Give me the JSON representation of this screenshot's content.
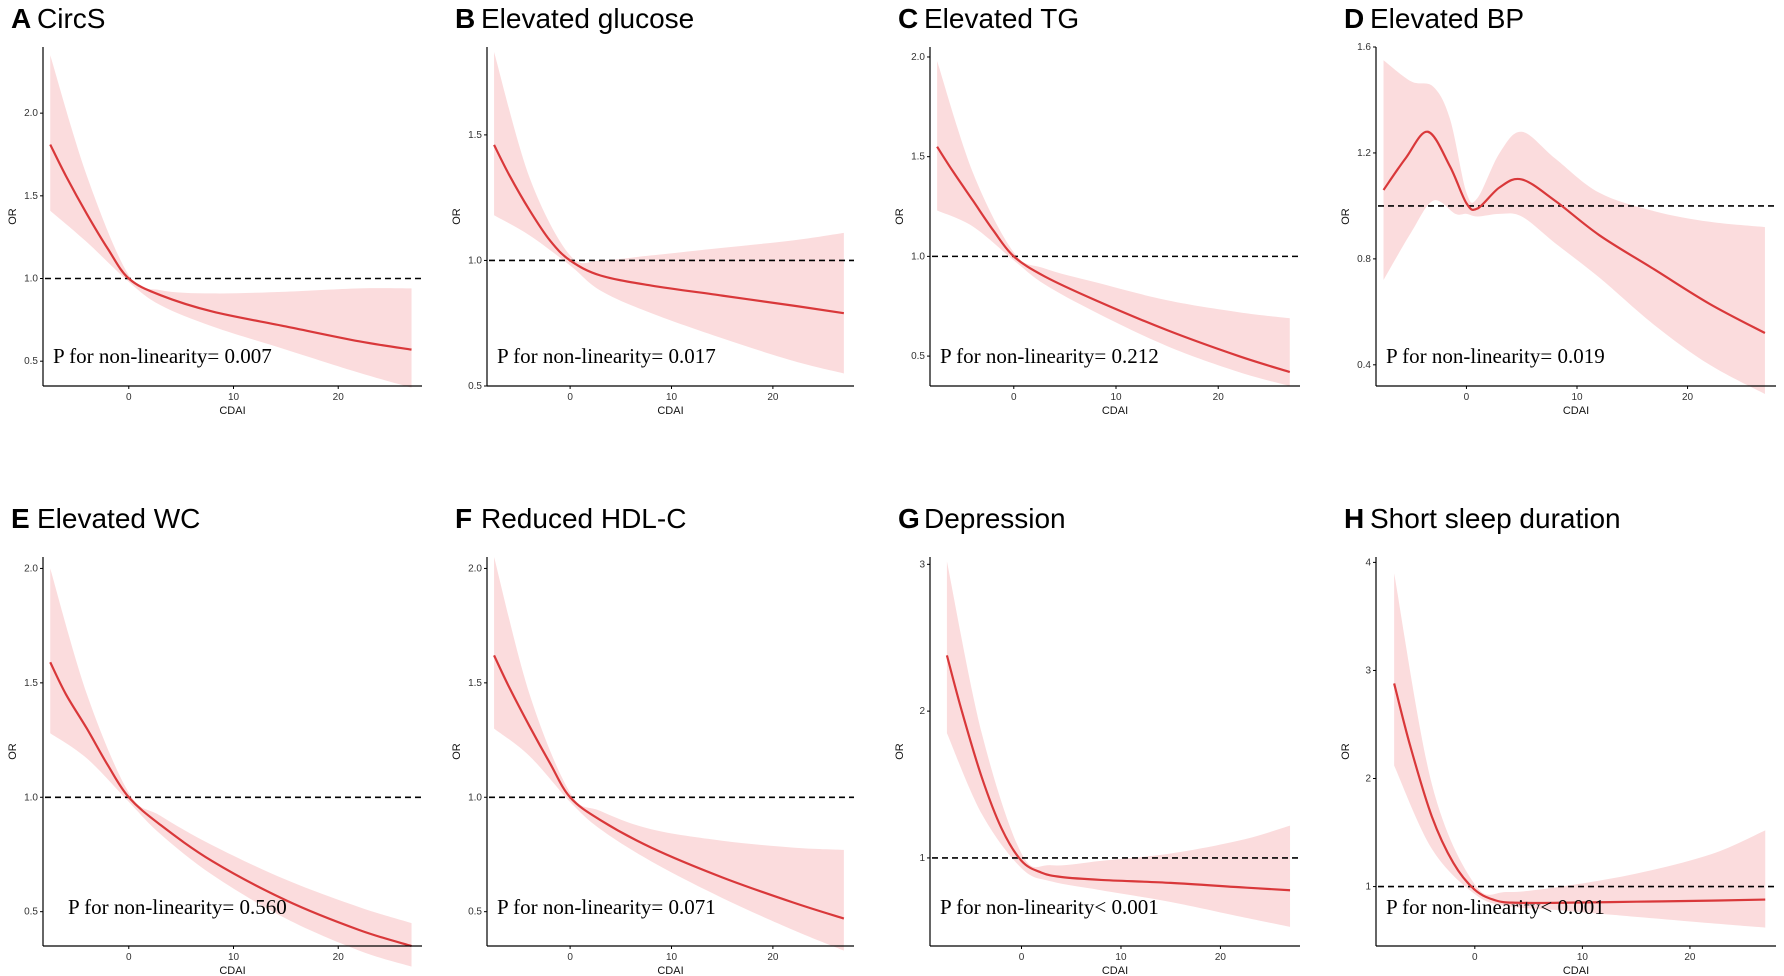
{
  "figure": {
    "palette": {
      "curve": "#d9383a",
      "band": "#fbdcdd",
      "reference": "#000000"
    }
  },
  "chart_data": [
    {
      "type": "line",
      "letter": "A",
      "title": "CircS",
      "xlabel": "CDAI",
      "ylabel": "OR",
      "xlim": [
        -8,
        28
      ],
      "ylim": [
        0.35,
        2.4
      ],
      "xticks": [
        0,
        10,
        20
      ],
      "yticks": [
        0.5,
        1.0,
        1.5,
        2.0
      ],
      "ytick_labels": [
        "0.5",
        "1.0",
        "1.5",
        "2.0"
      ],
      "reference_y": 1.0,
      "annotation": "P for non-linearity= 0.007",
      "series": [
        {
          "name": "OR",
          "x": [
            -7.5,
            -6,
            -4,
            -2,
            0,
            3,
            8,
            15,
            22,
            27
          ],
          "y": [
            1.81,
            1.62,
            1.39,
            1.18,
            1.0,
            0.9,
            0.8,
            0.71,
            0.62,
            0.57
          ]
        },
        {
          "name": "95% CI lower",
          "x": [
            -7.5,
            -4,
            0,
            3,
            8,
            15,
            22,
            27
          ],
          "y": [
            1.41,
            1.22,
            0.98,
            0.84,
            0.71,
            0.57,
            0.43,
            0.34
          ]
        },
        {
          "name": "95% CI upper",
          "x": [
            -7.5,
            -4,
            0,
            3,
            8,
            15,
            22,
            27
          ],
          "y": [
            2.35,
            1.62,
            1.02,
            0.93,
            0.91,
            0.92,
            0.94,
            0.94
          ]
        }
      ]
    },
    {
      "type": "line",
      "letter": "B",
      "title": "Elevated glucose",
      "xlabel": "CDAI",
      "ylabel": "OR",
      "xlim": [
        -8,
        28
      ],
      "ylim": [
        0.5,
        1.85
      ],
      "xticks": [
        0,
        10,
        20
      ],
      "yticks": [
        0.5,
        1.0,
        1.5
      ],
      "ytick_labels": [
        "0.5",
        "1.0",
        "1.5"
      ],
      "reference_y": 1.0,
      "annotation": "P for non-linearity= 0.017",
      "series": [
        {
          "name": "OR",
          "x": [
            -7.5,
            -6,
            -4,
            -2,
            0,
            3,
            8,
            15,
            22,
            27
          ],
          "y": [
            1.46,
            1.34,
            1.2,
            1.08,
            1.0,
            0.94,
            0.9,
            0.86,
            0.82,
            0.79
          ]
        },
        {
          "name": "95% CI lower",
          "x": [
            -7.5,
            -4,
            0,
            3,
            8,
            15,
            22,
            27
          ],
          "y": [
            1.18,
            1.1,
            0.98,
            0.88,
            0.79,
            0.69,
            0.6,
            0.55
          ]
        },
        {
          "name": "95% CI upper",
          "x": [
            -7.5,
            -4,
            0,
            3,
            8,
            15,
            22,
            27
          ],
          "y": [
            1.83,
            1.33,
            1.02,
            1.0,
            1.02,
            1.05,
            1.08,
            1.11
          ]
        }
      ]
    },
    {
      "type": "line",
      "letter": "C",
      "title": "Elevated TG",
      "xlabel": "CDAI",
      "ylabel": "OR",
      "xlim": [
        -8,
        28
      ],
      "ylim": [
        0.35,
        2.05
      ],
      "xticks": [
        0,
        10,
        20
      ],
      "yticks": [
        0.5,
        1.0,
        1.5,
        2.0
      ],
      "ytick_labels": [
        "0.5",
        "1.0",
        "1.5",
        "2.0"
      ],
      "reference_y": 1.0,
      "annotation": "P for non-linearity= 0.212",
      "series": [
        {
          "name": "OR",
          "x": [
            -7.5,
            -6,
            -4,
            -2,
            0,
            3,
            8,
            15,
            22,
            27
          ],
          "y": [
            1.55,
            1.43,
            1.28,
            1.13,
            1.0,
            0.9,
            0.78,
            0.63,
            0.5,
            0.42
          ]
        },
        {
          "name": "95% CI lower",
          "x": [
            -7.5,
            -4,
            0,
            3,
            8,
            15,
            22,
            27
          ],
          "y": [
            1.23,
            1.15,
            0.98,
            0.86,
            0.72,
            0.55,
            0.42,
            0.35
          ]
        },
        {
          "name": "95% CI upper",
          "x": [
            -7.5,
            -4,
            0,
            3,
            8,
            15,
            22,
            27
          ],
          "y": [
            1.98,
            1.42,
            1.02,
            0.94,
            0.87,
            0.78,
            0.72,
            0.69
          ]
        }
      ]
    },
    {
      "type": "line",
      "letter": "D",
      "title": "Elevated BP",
      "xlabel": "CDAI",
      "ylabel": "OR",
      "xlim": [
        -8,
        28
      ],
      "ylim": [
        0.32,
        1.6
      ],
      "xticks": [
        0,
        10,
        20
      ],
      "yticks": [
        0.4,
        0.8,
        1.2,
        1.6
      ],
      "ytick_labels": [
        "0.4",
        "0.8",
        "1.2",
        "1.6"
      ],
      "reference_y": 1.0,
      "annotation": "P for non-linearity= 0.019",
      "series": [
        {
          "name": "OR",
          "x": [
            -7.5,
            -5.5,
            -3.5,
            -1.5,
            0,
            1,
            3,
            5,
            8,
            12,
            17,
            22,
            27
          ],
          "y": [
            1.06,
            1.18,
            1.28,
            1.15,
            1.01,
            0.99,
            1.07,
            1.1,
            1.02,
            0.89,
            0.76,
            0.63,
            0.52
          ]
        },
        {
          "name": "95% CI lower",
          "x": [
            -7.5,
            -5,
            -3,
            -1,
            0,
            1,
            3,
            5,
            8,
            12,
            17,
            22,
            27
          ],
          "y": [
            0.72,
            0.9,
            1.02,
            0.97,
            0.97,
            0.96,
            0.97,
            0.96,
            0.86,
            0.73,
            0.55,
            0.4,
            0.29
          ]
        },
        {
          "name": "95% CI upper",
          "x": [
            -7.5,
            -5,
            -3,
            -1.5,
            0,
            1,
            3,
            5,
            8,
            12,
            17,
            22,
            27
          ],
          "y": [
            1.55,
            1.47,
            1.45,
            1.33,
            1.05,
            1.03,
            1.2,
            1.28,
            1.18,
            1.05,
            0.98,
            0.94,
            0.92
          ]
        }
      ]
    },
    {
      "type": "line",
      "letter": "E",
      "title": "Elevated WC",
      "xlabel": "CDAI",
      "ylabel": "OR",
      "xlim": [
        -8,
        28
      ],
      "ylim": [
        0.35,
        2.05
      ],
      "xticks": [
        0,
        10,
        20
      ],
      "yticks": [
        0.5,
        1.0,
        1.5,
        2.0
      ],
      "ytick_labels": [
        "0.5",
        "1.0",
        "1.5",
        "2.0"
      ],
      "reference_y": 1.0,
      "annotation": "P for non-linearity= 0.560",
      "series": [
        {
          "name": "OR",
          "x": [
            -7.5,
            -6,
            -4,
            -2,
            0,
            3,
            8,
            15,
            22,
            27
          ],
          "y": [
            1.59,
            1.45,
            1.3,
            1.14,
            1.0,
            0.88,
            0.72,
            0.55,
            0.42,
            0.35
          ]
        },
        {
          "name": "95% CI lower",
          "x": [
            -7.5,
            -4,
            0,
            3,
            8,
            15,
            22,
            27
          ],
          "y": [
            1.28,
            1.17,
            0.98,
            0.84,
            0.66,
            0.47,
            0.33,
            0.26
          ]
        },
        {
          "name": "95% CI upper",
          "x": [
            -7.5,
            -4,
            0,
            3,
            8,
            15,
            22,
            27
          ],
          "y": [
            2.0,
            1.45,
            1.02,
            0.92,
            0.79,
            0.64,
            0.52,
            0.45
          ]
        }
      ]
    },
    {
      "type": "line",
      "letter": "F",
      "title": "Reduced HDL-C",
      "xlabel": "CDAI",
      "ylabel": "OR",
      "xlim": [
        -8,
        28
      ],
      "ylim": [
        0.35,
        2.05
      ],
      "xticks": [
        0,
        10,
        20
      ],
      "yticks": [
        0.5,
        1.0,
        1.5,
        2.0
      ],
      "ytick_labels": [
        "0.5",
        "1.0",
        "1.5",
        "2.0"
      ],
      "reference_y": 1.0,
      "annotation": "P for non-linearity= 0.071",
      "series": [
        {
          "name": "OR",
          "x": [
            -7.5,
            -6,
            -4,
            -2,
            0,
            3,
            8,
            15,
            22,
            27
          ],
          "y": [
            1.62,
            1.48,
            1.31,
            1.15,
            1.0,
            0.9,
            0.78,
            0.65,
            0.54,
            0.47
          ]
        },
        {
          "name": "95% CI lower",
          "x": [
            -7.5,
            -4,
            0,
            3,
            8,
            15,
            22,
            27
          ],
          "y": [
            1.3,
            1.18,
            0.98,
            0.86,
            0.72,
            0.56,
            0.42,
            0.33
          ]
        },
        {
          "name": "95% CI upper",
          "x": [
            -7.5,
            -4,
            0,
            3,
            8,
            15,
            22,
            27
          ],
          "y": [
            2.05,
            1.45,
            1.02,
            0.94,
            0.86,
            0.81,
            0.78,
            0.77
          ]
        }
      ]
    },
    {
      "type": "line",
      "letter": "G",
      "title": "Depression",
      "xlabel": "CDAI",
      "ylabel": "OR",
      "xlim": [
        -9,
        28
      ],
      "ylim": [
        0.4,
        3.05
      ],
      "xticks": [
        0,
        10,
        20
      ],
      "yticks": [
        1,
        2,
        3
      ],
      "ytick_labels": [
        "1",
        "2",
        "3"
      ],
      "reference_y": 1.0,
      "annotation": "P for non-linearity< 0.001",
      "series": [
        {
          "name": "OR",
          "x": [
            -7.5,
            -6,
            -4,
            -2,
            0,
            2,
            4,
            8,
            15,
            22,
            27
          ],
          "y": [
            2.38,
            2.0,
            1.55,
            1.2,
            0.98,
            0.9,
            0.87,
            0.85,
            0.83,
            0.8,
            0.78
          ]
        },
        {
          "name": "95% CI lower",
          "x": [
            -7.5,
            -4,
            0,
            3,
            8,
            15,
            22,
            27
          ],
          "y": [
            1.85,
            1.3,
            0.93,
            0.84,
            0.78,
            0.7,
            0.6,
            0.53
          ]
        },
        {
          "name": "95% CI upper",
          "x": [
            -7.5,
            -4,
            0,
            3,
            8,
            15,
            22,
            27
          ],
          "y": [
            3.02,
            1.85,
            1.03,
            0.95,
            0.98,
            1.03,
            1.12,
            1.22
          ]
        }
      ]
    },
    {
      "type": "line",
      "letter": "H",
      "title": "Short sleep duration",
      "xlabel": "CDAI",
      "ylabel": "OR",
      "xlim": [
        -9,
        28
      ],
      "ylim": [
        0.45,
        4.05
      ],
      "xticks": [
        0,
        10,
        20
      ],
      "yticks": [
        1,
        2,
        3,
        4
      ],
      "ytick_labels": [
        "1",
        "2",
        "3",
        "4"
      ],
      "reference_y": 1.0,
      "annotation": "P for non-linearity< 0.001",
      "series": [
        {
          "name": "OR",
          "x": [
            -7.5,
            -6,
            -4,
            -2,
            0,
            2,
            4,
            8,
            15,
            22,
            27
          ],
          "y": [
            2.88,
            2.3,
            1.65,
            1.22,
            0.97,
            0.87,
            0.85,
            0.85,
            0.86,
            0.87,
            0.88
          ]
        },
        {
          "name": "95% CI lower",
          "x": [
            -7.5,
            -4,
            0,
            3,
            8,
            15,
            22,
            27
          ],
          "y": [
            2.12,
            1.35,
            0.93,
            0.82,
            0.78,
            0.72,
            0.66,
            0.62
          ]
        },
        {
          "name": "95% CI upper",
          "x": [
            -7.5,
            -4,
            0,
            3,
            8,
            15,
            22,
            27
          ],
          "y": [
            3.9,
            1.95,
            1.02,
            0.95,
            1.0,
            1.12,
            1.3,
            1.52
          ]
        }
      ]
    }
  ]
}
